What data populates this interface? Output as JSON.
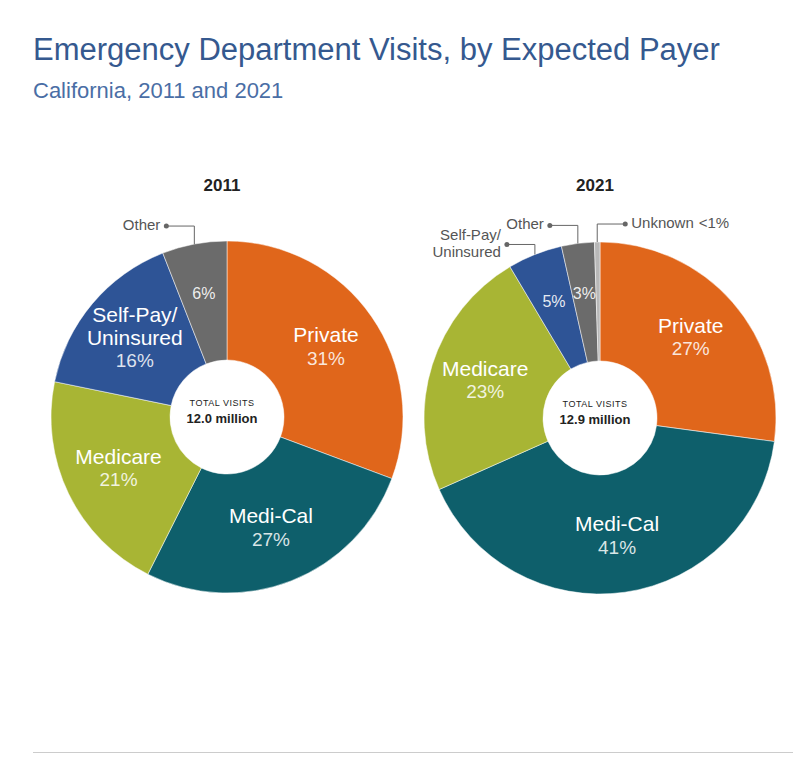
{
  "title": "Emergency Department Visits, by Expected Payer",
  "subtitle": "California, 2011 and 2021",
  "chart_data": [
    {
      "type": "pie",
      "title": "2011",
      "annotations": [
        "TOTAL VISITS",
        "12.0 million"
      ],
      "categories": [
        "Private",
        "Medi-Cal",
        "Medicare",
        "Self-Pay/Uninsured",
        "Other"
      ],
      "values": [
        31,
        27,
        21,
        16,
        6
      ],
      "value_labels": [
        "31%",
        "27%",
        "21%",
        "16%",
        "6%"
      ],
      "colors": [
        "#e0661b",
        "#0e5f6b",
        "#a8b534",
        "#2e5496",
        "#6b6b6b"
      ],
      "data_labels": true
    },
    {
      "type": "pie",
      "title": "2021",
      "annotations": [
        "TOTAL VISITS",
        "12.9 million"
      ],
      "categories": [
        "Private",
        "Medi-Cal",
        "Medicare",
        "Self-Pay/Uninsured",
        "Other",
        "Unknown"
      ],
      "values": [
        27,
        41,
        23,
        5,
        3,
        0.5
      ],
      "value_labels": [
        "27%",
        "41%",
        "23%",
        "5%",
        "3%",
        "<1%"
      ],
      "colors": [
        "#e0661b",
        "#0e5f6b",
        "#a8b534",
        "#2e5496",
        "#6b6b6b",
        "#b8b8b8"
      ],
      "data_labels": true
    }
  ]
}
